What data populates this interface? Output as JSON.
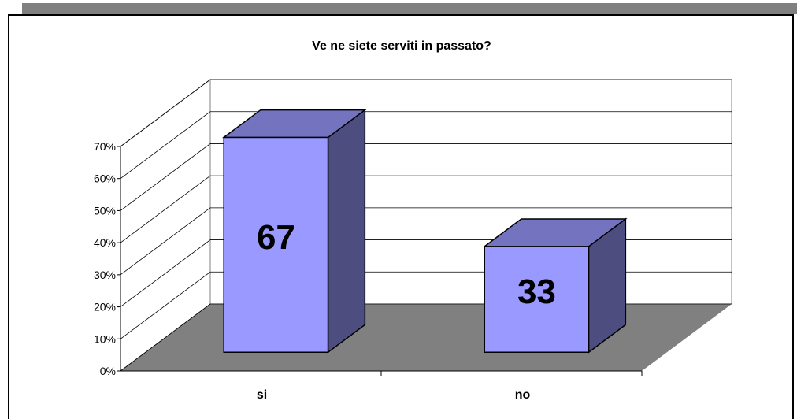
{
  "chart_data": {
    "type": "bar3d",
    "title": "Ve ne siete serviti in passato?",
    "categories": [
      "si",
      "no"
    ],
    "values": [
      67,
      33
    ],
    "color": "#9999ff",
    "ylim": [
      0,
      70
    ],
    "yticks": [
      {
        "value": 0,
        "label": "0%"
      },
      {
        "value": 10,
        "label": "10%"
      },
      {
        "value": 20,
        "label": "20%"
      },
      {
        "value": 30,
        "label": "30%"
      },
      {
        "value": 40,
        "label": "40%"
      },
      {
        "value": 50,
        "label": "50%"
      },
      {
        "value": 60,
        "label": "60%"
      },
      {
        "value": 70,
        "label": "70%"
      }
    ],
    "grid": true
  }
}
